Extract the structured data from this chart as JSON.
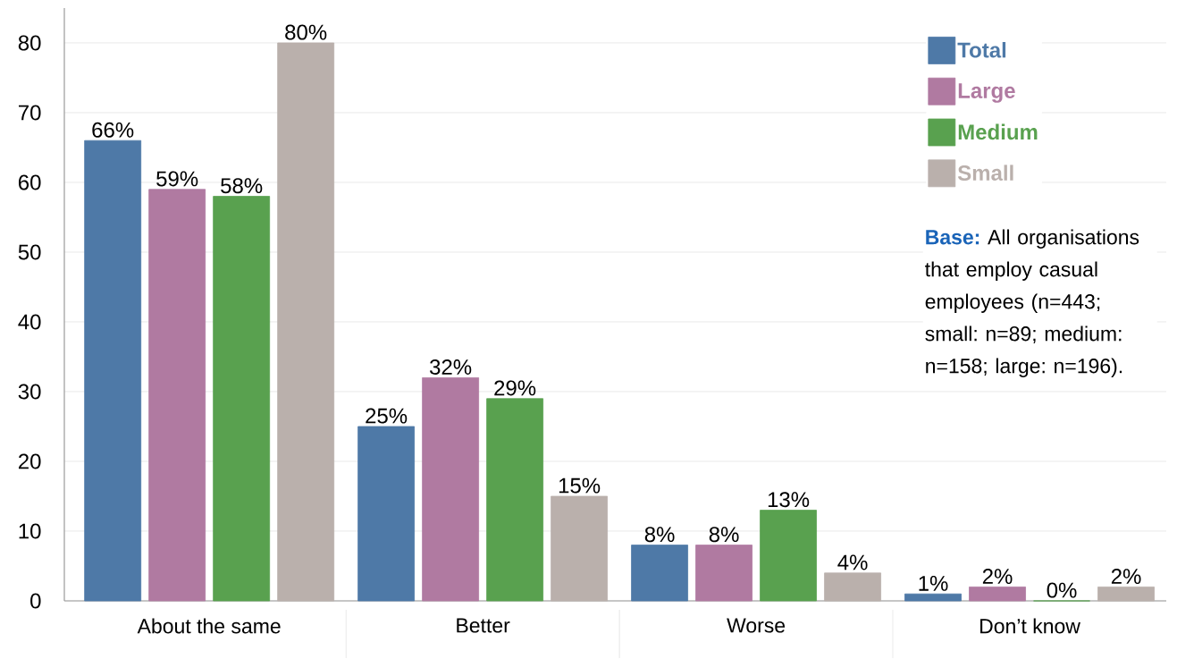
{
  "chart_data": {
    "type": "bar",
    "categories": [
      "About the same",
      "Better",
      "Worse",
      "Don’t know"
    ],
    "series": [
      {
        "name": "Total",
        "color": "#4e79a7",
        "values": [
          66,
          25,
          8,
          1
        ],
        "value_labels": [
          "66%",
          "25%",
          "8%",
          "1%"
        ]
      },
      {
        "name": "Large",
        "color": "#b07aa1",
        "values": [
          59,
          32,
          8,
          2
        ],
        "value_labels": [
          "59%",
          "32%",
          "8%",
          "2%"
        ]
      },
      {
        "name": "Medium",
        "color": "#59a14f",
        "values": [
          58,
          29,
          13,
          0
        ],
        "value_labels": [
          "58%",
          "29%",
          "13%",
          "0%"
        ]
      },
      {
        "name": "Small",
        "color": "#bab0ac",
        "values": [
          80,
          15,
          4,
          2
        ],
        "value_labels": [
          "80%",
          "15%",
          "4%",
          "2%"
        ]
      }
    ],
    "ylim": [
      0,
      85
    ],
    "yticks": [
      0,
      10,
      20,
      30,
      40,
      50,
      60,
      70,
      80
    ],
    "grid": "y",
    "legend": "top right",
    "annotations": [
      "**Base:** All organisations that employ casual employees (n=443; small: n=89; medium: n=158; large: n=196)."
    ]
  }
}
